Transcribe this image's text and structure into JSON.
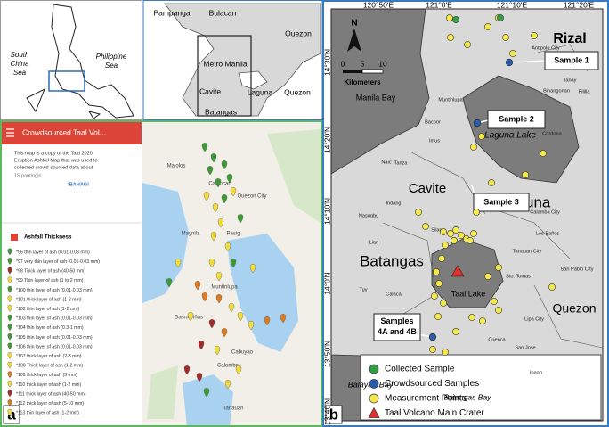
{
  "inset": {
    "sea_west": [
      "South",
      "China",
      "Sea"
    ],
    "sea_east": [
      "Philippine",
      "Sea"
    ]
  },
  "region": {
    "labels": [
      "Pampanga",
      "Bulacan",
      "Quezon",
      "Metro Manila",
      "Cavite",
      "Laguna",
      "Quezon",
      "Batangas"
    ]
  },
  "panel_a": {
    "letter": "a",
    "app_title": "Crowdsourced Taal Vol...",
    "description": [
      "This map is a copy of the Taal 2020",
      "Eruption Ashfall Map that was used to",
      "collected crowd-sourced data about"
    ],
    "views": "15 pagtingin",
    "share": "IBAHAGI",
    "layer": "Ashfall Thickness",
    "items": [
      {
        "label": "*96 thin layer of ash (0.01-0.03 mm)",
        "color": "#3d9b35"
      },
      {
        "label": "*97 very thin layer of ash (0.01-0.03 mm)",
        "color": "#3d9b35"
      },
      {
        "label": "*98 Thick layer of ash (40-50 mm)",
        "color": "#a52a2a"
      },
      {
        "label": "*99 Thin layer of ash (1 to 2 mm)",
        "color": "#f2dc3c"
      },
      {
        "label": "*100 thin layer of ash (0.01-0.03 mm)",
        "color": "#3d9b35"
      },
      {
        "label": "*101 thick layer of ash (1-2 mm)",
        "color": "#f2dc3c"
      },
      {
        "label": "*102 thin layer of ash (1-2 mm)",
        "color": "#f2dc3c"
      },
      {
        "label": "*103 thin layer of ash (0.01-0.03 mm)",
        "color": "#3d9b35"
      },
      {
        "label": "*104 thin layer of ash (0.3-1 mm)",
        "color": "#3d9b35"
      },
      {
        "label": "*105 thin layer of ash (0.01-0.03 mm)",
        "color": "#3d9b35"
      },
      {
        "label": "*106 thin layer of ash (0.01-0.03 mm)",
        "color": "#3d9b35"
      },
      {
        "label": "*107 thick layer of ash (2-3 mm)",
        "color": "#f2dc3c"
      },
      {
        "label": "*108 Thick layer of ash (1-2 mm)",
        "color": "#f2dc3c"
      },
      {
        "label": "*109 thick layer of ash (5 mm)",
        "color": "#e07a1f"
      },
      {
        "label": "*110 thick layer of ash (1-2 mm)",
        "color": "#f2dc3c"
      },
      {
        "label": "*111 thick layer of ash (40-50 mm)",
        "color": "#a52a2a"
      },
      {
        "label": "*112 thick layer of ash (5-10 mm)",
        "color": "#e07a1f"
      },
      {
        "label": "*113 thin layer of ash (1-2 mm)",
        "color": "#f2dc3c"
      }
    ],
    "places": [
      "Malolos",
      "Caloocan",
      "Quezon City",
      "Maynila",
      "Pasig",
      "Muntinlupa",
      "Dasmariñas",
      "Cabuyao",
      "Calamba",
      "Tanauan"
    ]
  },
  "panel_b": {
    "letter": "b",
    "lon_labels": [
      "120°50'E",
      "121°0'E",
      "121°10'E",
      "121°20'E"
    ],
    "lat_labels": [
      "14°30'N",
      "14°20'N",
      "14°10'N",
      "14°0'N",
      "13°50'N",
      "13°40'N"
    ],
    "north": "N",
    "scale_labels": [
      "0",
      "5",
      "10"
    ],
    "scale_unit": "Kilometers",
    "regions": [
      "Rizal",
      "Manila Bay",
      "Laguna Lake",
      "Laguna",
      "Cavite",
      "Batangas",
      "Taal Lake",
      "Quezon",
      "Balayan Bay",
      "Batangas Bay"
    ],
    "towns": [
      "Antipolo City",
      "Tanay",
      "Pililla",
      "Cardona",
      "Binangonan",
      "Muntinlupa",
      "Bacoor",
      "Imus",
      "Naic",
      "Tanza",
      "Indang",
      "Silang",
      "Calamba City",
      "Los Baños",
      "Tanauan City",
      "Sto. Tomas",
      "Lipa City",
      "San Jose",
      "Ibaan",
      "Nasugbu",
      "Lian",
      "Calaca",
      "Balayan",
      "Tuy",
      "San Pablo City",
      "Cuenca"
    ],
    "callouts": [
      "Sample 1",
      "Sample 2",
      "Sample 3",
      "Samples 4A and 4B"
    ],
    "legend": [
      {
        "name": "Collected Sample",
        "color": "#2ea043"
      },
      {
        "name": "Crowdsourced Samples",
        "color": "#2a5db0"
      },
      {
        "name": "Measurement Points",
        "color": "#f5e84a"
      },
      {
        "name": "Taal Volcano Main Crater",
        "color": "#e03030"
      }
    ]
  }
}
